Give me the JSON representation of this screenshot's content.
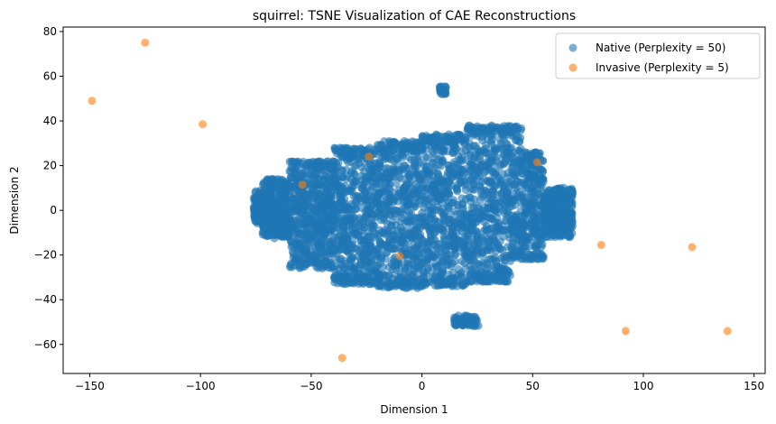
{
  "chart_data": {
    "type": "scatter",
    "title": "squirrel: TSNE Visualization of CAE Reconstructions",
    "xlabel": "Dimension 1",
    "ylabel": "Dimension 2",
    "xlim": [
      -162,
      155
    ],
    "ylim": [
      -73,
      82
    ],
    "xticks": [
      -150,
      -100,
      -50,
      0,
      50,
      100,
      150
    ],
    "yticks": [
      -60,
      -40,
      -20,
      0,
      20,
      40,
      60,
      80
    ],
    "grid": false,
    "legend_position": "top-right",
    "series": [
      {
        "name": "Native (Perplexity = 50)",
        "color": "#1f77b4",
        "opacity": 0.6,
        "main_cluster": {
          "x_range": [
            -76,
            68
          ],
          "y_range": [
            -37,
            40
          ],
          "approx_count": 12000
        },
        "sub_clusters": [
          {
            "x_center": 9.5,
            "y_center": 53.5,
            "x_spread": 1.5,
            "y_spread": 2,
            "count": 30
          },
          {
            "x_center": 20,
            "y_center": -49.5,
            "x_spread": 5.5,
            "y_spread": 2.5,
            "count": 60
          }
        ]
      },
      {
        "name": "Invasive (Perplexity = 5)",
        "color": "#ff7f0e",
        "opacity": 0.6,
        "points": [
          {
            "x": -125,
            "y": 75
          },
          {
            "x": -149,
            "y": 49
          },
          {
            "x": -99,
            "y": 38.5
          },
          {
            "x": -24,
            "y": 24
          },
          {
            "x": -54,
            "y": 11.5
          },
          {
            "x": 52,
            "y": 21.5
          },
          {
            "x": -10,
            "y": -20.5
          },
          {
            "x": -36,
            "y": -66
          },
          {
            "x": 81,
            "y": -15.5
          },
          {
            "x": 122,
            "y": -16.5
          },
          {
            "x": 92,
            "y": -54
          },
          {
            "x": 138,
            "y": -54
          }
        ]
      }
    ]
  }
}
